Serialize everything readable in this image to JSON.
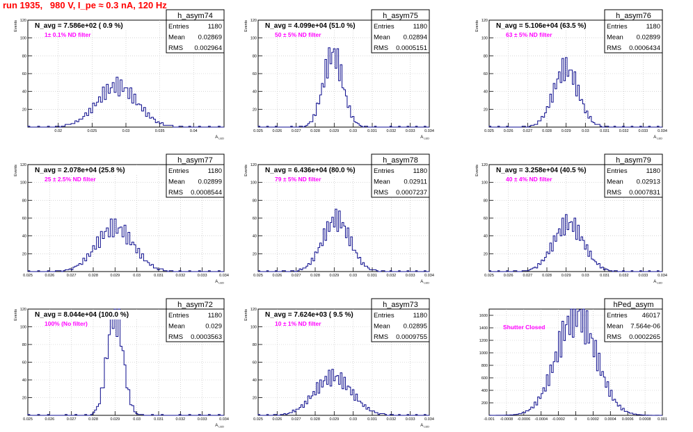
{
  "canvas_title": "run 1935,   980 V, I_pe ≈ 0.3 nA, 120 Hz",
  "colors": {
    "histogram": "#0a0a8c",
    "annotation": "#ff00ff",
    "title": "#ff0000",
    "grid": "#bdbdbd"
  },
  "chart_data": [
    {
      "type": "histogram",
      "name": "h_asym74",
      "navg_label": "N_avg = 7.586e+02 ( 0.9 %)",
      "filter_label": "1± 0.1% ND filter",
      "stats": {
        "Entries": "1180",
        "Mean": "0.02869",
        "RMS": "0.002964"
      },
      "ylabel": "Events",
      "xlabel": "A_LED",
      "xlim": [
        0.0155,
        0.0445
      ],
      "ylim": [
        0,
        120
      ],
      "xticks": [
        0.02,
        0.025,
        0.03,
        0.035,
        0.04
      ],
      "xticklabels": [
        "0.02",
        "0.025",
        "0.03",
        "0.035",
        "0.04"
      ],
      "yticks": [
        20,
        40,
        60,
        80,
        100,
        120
      ],
      "mean": 0.02869,
      "rms": 0.002964,
      "entries": 1180,
      "bins": 100,
      "grid": true
    },
    {
      "type": "histogram",
      "name": "h_asym75",
      "navg_label": "N_avg = 4.099e+04 (51.0 %)",
      "filter_label": "50 ± 5% ND filter",
      "stats": {
        "Entries": "1180",
        "Mean": "0.02894",
        "RMS": "0.0005151"
      },
      "ylabel": "Events",
      "xlabel": "A_LED",
      "xlim": [
        0.025,
        0.034
      ],
      "ylim": [
        0,
        120
      ],
      "xticks": [
        0.025,
        0.026,
        0.027,
        0.028,
        0.029,
        0.03,
        0.031,
        0.032,
        0.033,
        0.034
      ],
      "xticklabels": [
        "0.025",
        "0.026",
        "0.027",
        "0.028",
        "0.029",
        "0.03",
        "0.031",
        "0.032",
        "0.033",
        "0.034"
      ],
      "yticks": [
        20,
        40,
        60,
        80,
        100,
        120
      ],
      "mean": 0.02894,
      "rms": 0.0005151,
      "entries": 1180,
      "bins": 100,
      "grid": true
    },
    {
      "type": "histogram",
      "name": "h_asym76",
      "navg_label": "N_avg = 5.106e+04 (63.5 %)",
      "filter_label": "63 ± 5% ND filter",
      "stats": {
        "Entries": "1180",
        "Mean": "0.02899",
        "RMS": "0.0006434"
      },
      "ylabel": "Events",
      "xlabel": "A_LED",
      "xlim": [
        0.025,
        0.034
      ],
      "ylim": [
        0,
        120
      ],
      "xticks": [
        0.025,
        0.026,
        0.027,
        0.028,
        0.029,
        0.03,
        0.031,
        0.032,
        0.033,
        0.034
      ],
      "xticklabels": [
        "0.025",
        "0.026",
        "0.027",
        "0.028",
        "0.029",
        "0.03",
        "0.031",
        "0.032",
        "0.033",
        "0.034"
      ],
      "yticks": [
        20,
        40,
        60,
        80,
        100,
        120
      ],
      "mean": 0.02899,
      "rms": 0.0006434,
      "entries": 1180,
      "bins": 100,
      "grid": true
    },
    {
      "type": "histogram",
      "name": "h_asym77",
      "navg_label": "N_avg = 2.078e+04 (25.8 %)",
      "filter_label": "25 ± 2.5% ND filter",
      "stats": {
        "Entries": "1180",
        "Mean": "0.02899",
        "RMS": "0.0008544"
      },
      "ylabel": "Events",
      "xlabel": "A_LED",
      "xlim": [
        0.025,
        0.034
      ],
      "ylim": [
        0,
        120
      ],
      "xticks": [
        0.025,
        0.026,
        0.027,
        0.028,
        0.029,
        0.03,
        0.031,
        0.032,
        0.033,
        0.034
      ],
      "xticklabels": [
        "0.025",
        "0.026",
        "0.027",
        "0.028",
        "0.029",
        "0.03",
        "0.031",
        "0.032",
        "0.033",
        "0.034"
      ],
      "yticks": [
        20,
        40,
        60,
        80,
        100,
        120
      ],
      "mean": 0.02899,
      "rms": 0.0008544,
      "entries": 1180,
      "bins": 100,
      "grid": true
    },
    {
      "type": "histogram",
      "name": "h_asym78",
      "navg_label": "N_avg = 6.436e+04 (80.0 %)",
      "filter_label": "79 ± 5% ND filter",
      "stats": {
        "Entries": "1180",
        "Mean": "0.02911",
        "RMS": "0.0007237"
      },
      "ylabel": "Events",
      "xlabel": "A_LED",
      "xlim": [
        0.025,
        0.034
      ],
      "ylim": [
        0,
        120
      ],
      "xticks": [
        0.025,
        0.026,
        0.027,
        0.028,
        0.029,
        0.03,
        0.031,
        0.032,
        0.033,
        0.034
      ],
      "xticklabels": [
        "0.025",
        "0.026",
        "0.027",
        "0.028",
        "0.029",
        "0.03",
        "0.031",
        "0.032",
        "0.033",
        "0.034"
      ],
      "yticks": [
        20,
        40,
        60,
        80,
        100,
        120
      ],
      "mean": 0.02911,
      "rms": 0.0007237,
      "entries": 1180,
      "bins": 100,
      "grid": true
    },
    {
      "type": "histogram",
      "name": "h_asym79",
      "navg_label": "N_avg = 3.258e+04 (40.5 %)",
      "filter_label": "40 ± 4% ND filter",
      "stats": {
        "Entries": "1180",
        "Mean": "0.02913",
        "RMS": "0.0007831"
      },
      "ylabel": "Events",
      "xlabel": "A_LED",
      "xlim": [
        0.025,
        0.034
      ],
      "ylim": [
        0,
        120
      ],
      "xticks": [
        0.025,
        0.026,
        0.027,
        0.028,
        0.029,
        0.03,
        0.031,
        0.032,
        0.033,
        0.034
      ],
      "xticklabels": [
        "0.025",
        "0.026",
        "0.027",
        "0.028",
        "0.029",
        "0.03",
        "0.031",
        "0.032",
        "0.033",
        "0.034"
      ],
      "yticks": [
        20,
        40,
        60,
        80,
        100,
        120
      ],
      "mean": 0.02913,
      "rms": 0.0007831,
      "entries": 1180,
      "bins": 100,
      "grid": true
    },
    {
      "type": "histogram",
      "name": "h_asym72",
      "navg_label": "N_avg = 8.044e+04 (100.0 %)",
      "filter_label": "100% (No filter)",
      "stats": {
        "Entries": "1180",
        "Mean": "0.029",
        "RMS": "0.0003563"
      },
      "ylabel": "Events",
      "xlabel": "A_LED",
      "xlim": [
        0.025,
        0.034
      ],
      "ylim": [
        0,
        120
      ],
      "xticks": [
        0.025,
        0.026,
        0.027,
        0.028,
        0.029,
        0.03,
        0.031,
        0.032,
        0.033,
        0.034
      ],
      "xticklabels": [
        "0.025",
        "0.026",
        "0.027",
        "0.028",
        "0.029",
        "0.03",
        "0.031",
        "0.032",
        "0.033",
        "0.034"
      ],
      "yticks": [
        20,
        40,
        60,
        80,
        100,
        120
      ],
      "mean": 0.029,
      "rms": 0.0003563,
      "entries": 1180,
      "bins": 100,
      "grid": true
    },
    {
      "type": "histogram",
      "name": "h_asym73",
      "navg_label": "N_avg = 7.624e+03 ( 9.5 %)",
      "filter_label": "10 ± 1% ND filter",
      "stats": {
        "Entries": "1180",
        "Mean": "0.02895",
        "RMS": "0.0009755"
      },
      "ylabel": "Events",
      "xlabel": "A_LED",
      "xlim": [
        0.025,
        0.034
      ],
      "ylim": [
        0,
        120
      ],
      "xticks": [
        0.025,
        0.026,
        0.027,
        0.028,
        0.029,
        0.03,
        0.031,
        0.032,
        0.033,
        0.034
      ],
      "xticklabels": [
        "0.025",
        "0.026",
        "0.027",
        "0.028",
        "0.029",
        "0.03",
        "0.031",
        "0.032",
        "0.033",
        "0.034"
      ],
      "yticks": [
        20,
        40,
        60,
        80,
        100,
        120
      ],
      "mean": 0.02895,
      "rms": 0.0009755,
      "entries": 1180,
      "bins": 100,
      "grid": true
    },
    {
      "type": "histogram",
      "name": "hPed_asym",
      "navg_label": "",
      "filter_label": "Shutter Closed",
      "stats": {
        "Entries": "46017",
        "Mean": "7.564e-06",
        "RMS": "0.0002265"
      },
      "ylabel": "",
      "xlabel": "",
      "xlim": [
        -0.001,
        0.001
      ],
      "ylim": [
        0,
        1700
      ],
      "xticks": [
        -0.001,
        -0.0008,
        -0.0006,
        -0.0004,
        -0.0002,
        0,
        0.0002,
        0.0004,
        0.0006,
        0.0008,
        0.001
      ],
      "xticklabels": [
        "-0.001",
        "-0.0008",
        "-0.0006",
        "-0.0004",
        "-0.0002",
        "0",
        "0.0002",
        "0.0004",
        "0.0006",
        "0.0008",
        "0.001"
      ],
      "yticks": [
        200,
        400,
        600,
        800,
        1000,
        1200,
        1400,
        1600
      ],
      "mean": 7.564e-06,
      "rms": 0.0002265,
      "entries": 46017,
      "bins": 100,
      "grid": true
    }
  ]
}
